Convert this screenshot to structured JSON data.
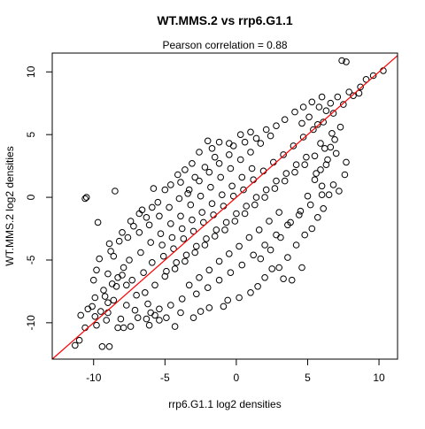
{
  "chart_data": {
    "type": "scatter",
    "title": "WT.MMS.2 vs rrp6.G1.1",
    "subtitle": "Pearson correlation =  0.88",
    "xlabel": "rrp6.G1.1 log2 densities",
    "ylabel": "WT.MMS.2 log2 densities",
    "xlim": [
      -12.9,
      11.3
    ],
    "ylim": [
      -12.9,
      11.5
    ],
    "x_ticks": [
      -10,
      -5,
      0,
      5,
      10
    ],
    "y_ticks": [
      -10,
      -5,
      0,
      5,
      10
    ],
    "x_tick_labels": [
      "-10",
      "-5",
      "0",
      "5",
      "10"
    ],
    "y_tick_labels": [
      "-10",
      "-5",
      "0",
      "5",
      "10"
    ],
    "grid": false,
    "legend": "none",
    "marker": "open-circle",
    "point_color": "#000000",
    "reference_line": {
      "type": "identity",
      "slope": 1,
      "intercept": 0,
      "color": "#ff0000"
    },
    "pearson_r": 0.88,
    "series": [
      {
        "values": [
          [
            -10.9,
            -9.4
          ],
          [
            -11.3,
            -11.8
          ],
          [
            -11.0,
            -11.4
          ],
          [
            -10.4,
            -8.9
          ],
          [
            -9.9,
            -9.5
          ],
          [
            -9.4,
            -11.9
          ],
          [
            -8.9,
            -11.9
          ],
          [
            -9.1,
            -9.8
          ],
          [
            -8.3,
            -10.4
          ],
          [
            -7.9,
            -10.4
          ],
          [
            -7.4,
            -10.3
          ],
          [
            -6.9,
            -9.6
          ],
          [
            -6.3,
            -9.7
          ],
          [
            -6.1,
            -10.2
          ],
          [
            -5.7,
            -9.4
          ],
          [
            -9.7,
            -2.0
          ],
          [
            -10.0,
            -6.6
          ],
          [
            -9.8,
            -5.8
          ],
          [
            -9.3,
            -7.4
          ],
          [
            -9.6,
            -4.9
          ],
          [
            -8.9,
            -3.7
          ],
          [
            -8.8,
            -4.3
          ],
          [
            -8.0,
            -2.8
          ],
          [
            -7.6,
            -3.2
          ],
          [
            -7.2,
            -2.3
          ],
          [
            -6.8,
            -1.3
          ],
          [
            -6.3,
            -1.6
          ],
          [
            -5.9,
            -0.8
          ],
          [
            -5.5,
            -0.4
          ],
          [
            -5.0,
            0.6
          ],
          [
            -4.6,
            1.0
          ],
          [
            -4.1,
            1.8
          ],
          [
            -3.6,
            2.2
          ],
          [
            -3.1,
            2.7
          ],
          [
            -2.6,
            3.6
          ],
          [
            -1.7,
            3.9
          ],
          [
            -1.2,
            4.4
          ],
          [
            -0.5,
            4.3
          ],
          [
            0.3,
            5.0
          ],
          [
            -5.8,
            0.7
          ],
          [
            -10.6,
            -0.1
          ],
          [
            -10.5,
            0.0
          ],
          [
            -8.5,
            0.5
          ],
          [
            -2.0,
            4.5
          ],
          [
            1.0,
            5.2
          ],
          [
            -0.9,
            -8.7
          ],
          [
            -0.6,
            -8.2
          ],
          [
            0.2,
            -8.0
          ],
          [
            1.0,
            -7.6
          ],
          [
            1.5,
            -7.1
          ],
          [
            2.0,
            -6.4
          ],
          [
            2.5,
            -5.7
          ],
          [
            3.0,
            -5.6
          ],
          [
            3.3,
            -6.5
          ],
          [
            3.9,
            -6.6
          ],
          [
            4.6,
            -5.6
          ],
          [
            3.6,
            -4.8
          ],
          [
            4.2,
            -3.8
          ],
          [
            4.8,
            -3.0
          ],
          [
            5.3,
            -2.5
          ],
          [
            5.7,
            -1.6
          ],
          [
            6.1,
            -0.9
          ],
          [
            6.5,
            0.2
          ],
          [
            7.2,
            0.5
          ],
          [
            6.0,
            0.9
          ],
          [
            5.5,
            1.4
          ],
          [
            5.9,
            2.2
          ],
          [
            6.3,
            2.6
          ],
          [
            7.7,
            2.8
          ],
          [
            5.0,
            0.1
          ],
          [
            4.5,
            -1.1
          ],
          [
            3.8,
            -2.0
          ],
          [
            3.1,
            -3.2
          ],
          [
            2.4,
            -4.2
          ],
          [
            1.7,
            -4.9
          ],
          [
            -4.3,
            -10.3
          ],
          [
            -3.9,
            -9.2
          ],
          [
            -3.0,
            -9.6
          ],
          [
            -2.5,
            -9.1
          ],
          [
            -1.9,
            -8.8
          ],
          [
            -4.9,
            -9.6
          ],
          [
            -5.4,
            -9.8
          ],
          [
            -6.0,
            -9.2
          ],
          [
            -7.1,
            -9.0
          ],
          [
            -7.7,
            -8.6
          ],
          [
            -8.1,
            -9.7
          ],
          [
            -8.6,
            -8.2
          ],
          [
            -9.2,
            -7.9
          ],
          [
            -9.9,
            -8.0
          ],
          [
            -8.4,
            -7.1
          ],
          [
            -7.3,
            -6.6
          ],
          [
            -6.5,
            -6.0
          ],
          [
            -5.9,
            -5.2
          ],
          [
            -5.1,
            -4.7
          ],
          [
            -4.4,
            -4.1
          ],
          [
            -3.7,
            -3.3
          ],
          [
            -3.0,
            -2.7
          ],
          [
            -2.3,
            -2.0
          ],
          [
            -1.6,
            -1.4
          ],
          [
            -0.9,
            -0.7
          ],
          [
            -0.2,
            0.1
          ],
          [
            0.5,
            0.6
          ],
          [
            1.2,
            1.4
          ],
          [
            1.9,
            2.1
          ],
          [
            2.6,
            2.8
          ],
          [
            3.3,
            3.4
          ],
          [
            4.0,
            4.1
          ],
          [
            4.7,
            4.8
          ],
          [
            5.4,
            5.4
          ],
          [
            6.1,
            6.0
          ],
          [
            6.8,
            6.7
          ],
          [
            7.5,
            7.4
          ],
          [
            8.2,
            8.1
          ],
          [
            8.6,
            8.3
          ],
          [
            7.4,
            10.9
          ],
          [
            7.7,
            10.8
          ],
          [
            9.1,
            9.4
          ],
          [
            10.3,
            10.1
          ],
          [
            9.6,
            9.7
          ],
          [
            8.7,
            8.8
          ],
          [
            5.8,
            7.2
          ],
          [
            6.6,
            7.5
          ],
          [
            7.1,
            8.0
          ],
          [
            7.9,
            8.4
          ],
          [
            6.3,
            6.9
          ],
          [
            -7.5,
            -5.0
          ],
          [
            -6.7,
            -4.4
          ],
          [
            -6.0,
            -3.6
          ],
          [
            -5.3,
            -2.9
          ],
          [
            -4.6,
            -2.1
          ],
          [
            -3.9,
            -1.5
          ],
          [
            -3.2,
            -0.6
          ],
          [
            -2.5,
            0.1
          ],
          [
            -1.8,
            0.8
          ],
          [
            -1.1,
            1.6
          ],
          [
            -0.4,
            2.3
          ],
          [
            0.3,
            3.0
          ],
          [
            1.0,
            3.6
          ],
          [
            1.7,
            4.3
          ],
          [
            2.4,
            4.9
          ],
          [
            -6.4,
            -7.6
          ],
          [
            -5.7,
            -7.0
          ],
          [
            -5.0,
            -6.3
          ],
          [
            -4.3,
            -5.7
          ],
          [
            -3.6,
            -5.1
          ],
          [
            -2.9,
            -4.4
          ],
          [
            -2.2,
            -3.8
          ],
          [
            -1.5,
            -3.1
          ],
          [
            -0.8,
            -2.6
          ],
          [
            -0.1,
            -1.9
          ],
          [
            0.6,
            -1.3
          ],
          [
            1.3,
            -0.6
          ],
          [
            2.0,
            0.0
          ],
          [
            2.7,
            0.7
          ],
          [
            3.4,
            1.3
          ],
          [
            4.1,
            2.0
          ],
          [
            4.8,
            2.6
          ],
          [
            5.5,
            3.3
          ],
          [
            6.2,
            3.9
          ],
          [
            6.9,
            4.6
          ],
          [
            -3.3,
            -7.0
          ],
          [
            -2.6,
            -6.4
          ],
          [
            -1.9,
            -5.8
          ],
          [
            -1.2,
            -5.1
          ],
          [
            -0.5,
            -4.5
          ],
          [
            0.2,
            -3.9
          ],
          [
            0.9,
            -3.2
          ],
          [
            1.6,
            -2.6
          ],
          [
            2.3,
            -1.9
          ],
          [
            3.0,
            -1.2
          ],
          [
            -8.0,
            -6.2
          ],
          [
            -7.0,
            -7.8
          ],
          [
            -6.2,
            -8.5
          ],
          [
            -5.4,
            -8.9
          ],
          [
            -4.6,
            -8.6
          ],
          [
            -3.8,
            -8.1
          ],
          [
            -2.8,
            -7.7
          ],
          [
            -2.0,
            -7.2
          ],
          [
            -1.2,
            -6.6
          ],
          [
            -0.4,
            -6.0
          ],
          [
            0.4,
            -5.4
          ],
          [
            1.2,
            -4.6
          ],
          [
            2.0,
            -3.8
          ],
          [
            2.8,
            -3.0
          ],
          [
            3.6,
            -2.2
          ],
          [
            4.4,
            -1.4
          ],
          [
            5.2,
            -0.6
          ],
          [
            6.0,
            0.2
          ],
          [
            6.8,
            1.0
          ],
          [
            7.6,
            1.8
          ],
          [
            -6.8,
            -2.8
          ],
          [
            -6.1,
            -2.2
          ],
          [
            -5.4,
            -1.5
          ],
          [
            -4.7,
            -0.8
          ],
          [
            -4.0,
            -0.1
          ],
          [
            -3.3,
            0.6
          ],
          [
            -2.6,
            1.3
          ],
          [
            -1.9,
            2.0
          ],
          [
            -1.2,
            2.7
          ],
          [
            -0.5,
            3.4
          ],
          [
            -5.2,
            -3.8
          ],
          [
            -4.5,
            -3.2
          ],
          [
            -3.8,
            -2.5
          ],
          [
            -3.1,
            -1.8
          ],
          [
            -2.4,
            -1.2
          ],
          [
            -1.7,
            -0.5
          ],
          [
            -1.0,
            0.2
          ],
          [
            -0.3,
            0.9
          ],
          [
            0.4,
            1.6
          ],
          [
            1.1,
            2.3
          ],
          [
            -4.9,
            -5.9
          ],
          [
            -4.2,
            -5.2
          ],
          [
            -3.5,
            -4.6
          ],
          [
            -2.8,
            -3.9
          ],
          [
            -2.1,
            -3.3
          ],
          [
            -1.4,
            -2.6
          ],
          [
            -0.7,
            -2.0
          ],
          [
            0.0,
            -1.3
          ],
          [
            0.7,
            -0.7
          ],
          [
            1.4,
            0.0
          ],
          [
            2.1,
            0.6
          ],
          [
            2.8,
            1.3
          ],
          [
            3.5,
            1.9
          ],
          [
            4.2,
            2.6
          ],
          [
            4.9,
            3.2
          ],
          [
            -7.7,
            -7.0
          ],
          [
            -7.9,
            -5.6
          ],
          [
            -8.3,
            -6.4
          ],
          [
            -8.7,
            -6.9
          ],
          [
            -9.0,
            -8.4
          ],
          [
            -9.5,
            -9.1
          ],
          [
            -10.1,
            -8.7
          ],
          [
            -10.6,
            -10.4
          ],
          [
            -9.8,
            -10.2
          ],
          [
            -9.0,
            -9.2
          ],
          [
            5.6,
            1.9
          ],
          [
            6.4,
            3.0
          ],
          [
            7.0,
            3.5
          ],
          [
            6.6,
            4.0
          ],
          [
            5.9,
            4.3
          ],
          [
            7.3,
            5.6
          ],
          [
            6.7,
            5.1
          ],
          [
            5.7,
            5.8
          ],
          [
            5.1,
            6.4
          ],
          [
            4.6,
            5.9
          ],
          [
            -6.6,
            -1.0
          ],
          [
            -7.4,
            -1.9
          ],
          [
            -8.2,
            -3.5
          ],
          [
            -8.6,
            -4.7
          ],
          [
            -9.0,
            -6.1
          ],
          [
            -3.4,
            0.3
          ],
          [
            -3.9,
            1.2
          ],
          [
            -2.9,
            1.6
          ],
          [
            -2.2,
            2.4
          ],
          [
            -1.5,
            3.2
          ],
          [
            -0.2,
            4.1
          ],
          [
            0.6,
            4.4
          ],
          [
            1.4,
            4.7
          ],
          [
            2.1,
            5.4
          ],
          [
            2.8,
            5.7
          ],
          [
            3.4,
            6.2
          ],
          [
            4.1,
            6.8
          ],
          [
            4.7,
            7.2
          ],
          [
            5.3,
            7.6
          ],
          [
            6.0,
            8.0
          ]
        ]
      }
    ]
  }
}
